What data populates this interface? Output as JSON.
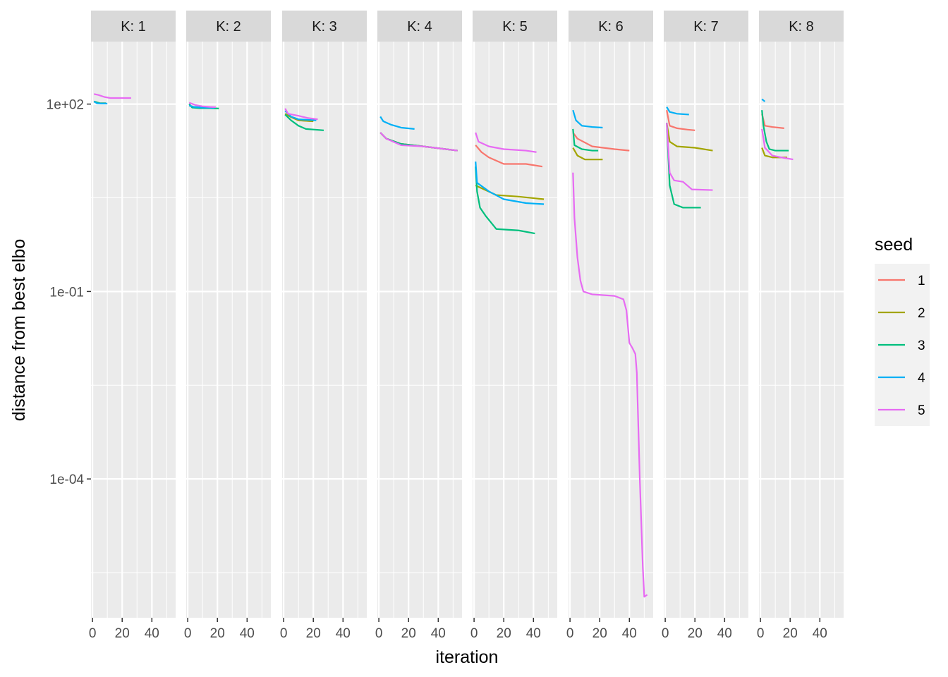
{
  "chart_data": {
    "type": "line",
    "title": "",
    "xlabel": "iteration",
    "ylabel": "distance from best elbo",
    "x_scale": "linear",
    "y_scale": "log10",
    "xlim": [
      -1,
      56
    ],
    "ylim": [
      6e-07,
      1000
    ],
    "x_ticks": [
      0,
      20,
      40
    ],
    "x_tick_labels": [
      "0",
      "20",
      "40"
    ],
    "y_ticks": [
      100,
      0.1,
      0.0001
    ],
    "y_tick_labels": [
      "1e+02",
      "1e-01",
      "1e-04"
    ],
    "facet_labels": [
      "K: 1",
      "K: 2",
      "K: 3",
      "K: 4",
      "K: 5",
      "K: 6",
      "K: 7",
      "K: 8"
    ],
    "legend": {
      "title": "seed",
      "position": "right",
      "entries": [
        {
          "label": "1",
          "color": "#F8766D"
        },
        {
          "label": "2",
          "color": "#A3A500"
        },
        {
          "label": "3",
          "color": "#00BF7D"
        },
        {
          "label": "4",
          "color": "#00B0F6"
        },
        {
          "label": "5",
          "color": "#E76BF3"
        }
      ]
    },
    "panels": [
      {
        "label": "K: 1",
        "series": [
          {
            "seed": "1",
            "points": [
              [
                1,
                110
              ],
              [
                5,
                103
              ],
              [
                9,
                103
              ]
            ]
          },
          {
            "seed": "2",
            "points": [
              [
                1,
                110
              ],
              [
                5,
                103
              ],
              [
                9,
                103
              ]
            ]
          },
          {
            "seed": "3",
            "points": [
              [
                1,
                110
              ],
              [
                5,
                103
              ],
              [
                9,
                103
              ]
            ]
          },
          {
            "seed": "4",
            "points": [
              [
                1,
                110
              ],
              [
                3,
                103
              ],
              [
                6,
                102
              ],
              [
                10,
                102
              ]
            ]
          },
          {
            "seed": "5",
            "points": [
              [
                1,
                145
              ],
              [
                4,
                140
              ],
              [
                8,
                130
              ],
              [
                12,
                125
              ],
              [
                26,
                125
              ]
            ]
          }
        ]
      },
      {
        "label": "K: 2",
        "series": [
          {
            "seed": "1",
            "points": [
              [
                1,
                95
              ],
              [
                4,
                90
              ],
              [
                10,
                88
              ],
              [
                18,
                87
              ]
            ]
          },
          {
            "seed": "2",
            "points": [
              [
                1,
                95
              ],
              [
                4,
                90
              ],
              [
                10,
                88
              ],
              [
                18,
                87
              ]
            ]
          },
          {
            "seed": "3",
            "points": [
              [
                1,
                100
              ],
              [
                3,
                88
              ],
              [
                8,
                86
              ],
              [
                15,
                86
              ],
              [
                21,
                85
              ]
            ]
          },
          {
            "seed": "4",
            "points": [
              [
                1,
                95
              ],
              [
                4,
                90
              ],
              [
                10,
                88
              ],
              [
                18,
                87
              ]
            ]
          },
          {
            "seed": "5",
            "points": [
              [
                1,
                105
              ],
              [
                5,
                97
              ],
              [
                10,
                92
              ],
              [
                15,
                90
              ],
              [
                19,
                89
              ]
            ]
          }
        ]
      },
      {
        "label": "K: 3",
        "series": [
          {
            "seed": "1",
            "points": [
              [
                1,
                70
              ],
              [
                5,
                62
              ],
              [
                10,
                55
              ],
              [
                20,
                53
              ]
            ]
          },
          {
            "seed": "2",
            "points": [
              [
                1,
                70
              ],
              [
                5,
                62
              ],
              [
                10,
                55
              ],
              [
                20,
                53
              ]
            ]
          },
          {
            "seed": "3",
            "points": [
              [
                1,
                68
              ],
              [
                5,
                55
              ],
              [
                10,
                45
              ],
              [
                15,
                40
              ],
              [
                27,
                38
              ]
            ]
          },
          {
            "seed": "4",
            "points": [
              [
                1,
                78
              ],
              [
                5,
                63
              ],
              [
                10,
                57
              ],
              [
                22,
                55
              ]
            ]
          },
          {
            "seed": "5",
            "points": [
              [
                1,
                85
              ],
              [
                3,
                70
              ],
              [
                10,
                65
              ],
              [
                16,
                60
              ],
              [
                23,
                57
              ]
            ]
          }
        ]
      },
      {
        "label": "K: 4",
        "series": [
          {
            "seed": "1",
            "points": [
              [
                1,
                35
              ],
              [
                5,
                28
              ],
              [
                15,
                23
              ],
              [
                30,
                21
              ],
              [
                53,
                18
              ]
            ]
          },
          {
            "seed": "2",
            "points": [
              [
                1,
                35
              ],
              [
                5,
                28
              ],
              [
                15,
                23
              ],
              [
                30,
                21
              ],
              [
                53,
                18
              ]
            ]
          },
          {
            "seed": "3",
            "points": [
              [
                1,
                35
              ],
              [
                5,
                28
              ],
              [
                15,
                23
              ],
              [
                30,
                21
              ],
              [
                53,
                18
              ]
            ]
          },
          {
            "seed": "4",
            "points": [
              [
                1,
                63
              ],
              [
                3,
                53
              ],
              [
                8,
                47
              ],
              [
                15,
                42
              ],
              [
                24,
                40
              ]
            ]
          },
          {
            "seed": "5",
            "points": [
              [
                1,
                35
              ],
              [
                5,
                28
              ],
              [
                15,
                22
              ],
              [
                30,
                21
              ],
              [
                53,
                18
              ]
            ]
          }
        ]
      },
      {
        "label": "K: 5",
        "series": [
          {
            "seed": "1",
            "points": [
              [
                1,
                22
              ],
              [
                5,
                17
              ],
              [
                10,
                14
              ],
              [
                20,
                11
              ],
              [
                35,
                11
              ],
              [
                46,
                10
              ]
            ]
          },
          {
            "seed": "2",
            "points": [
              [
                1,
                5
              ],
              [
                5,
                4.5
              ],
              [
                15,
                3.5
              ],
              [
                30,
                3.3
              ],
              [
                47,
                3.0
              ]
            ]
          },
          {
            "seed": "3",
            "points": [
              [
                1,
                10
              ],
              [
                2,
                4
              ],
              [
                4,
                2.2
              ],
              [
                8,
                1.6
              ],
              [
                15,
                1.0
              ],
              [
                30,
                0.95
              ],
              [
                41,
                0.85
              ]
            ]
          },
          {
            "seed": "4",
            "points": [
              [
                1,
                12
              ],
              [
                2,
                5.5
              ],
              [
                10,
                4
              ],
              [
                20,
                3
              ],
              [
                35,
                2.6
              ],
              [
                47,
                2.5
              ]
            ]
          },
          {
            "seed": "5",
            "points": [
              [
                1,
                35
              ],
              [
                3,
                25
              ],
              [
                10,
                21
              ],
              [
                20,
                19
              ],
              [
                35,
                18
              ],
              [
                42,
                17
              ]
            ]
          }
        ]
      },
      {
        "label": "K: 6",
        "series": [
          {
            "seed": "1",
            "points": [
              [
                2,
                35
              ],
              [
                5,
                28
              ],
              [
                15,
                21
              ],
              [
                30,
                19
              ],
              [
                40,
                18
              ]
            ]
          },
          {
            "seed": "2",
            "points": [
              [
                2,
                20
              ],
              [
                5,
                15
              ],
              [
                10,
                13
              ],
              [
                22,
                13
              ]
            ]
          },
          {
            "seed": "3",
            "points": [
              [
                2,
                40
              ],
              [
                3,
                22
              ],
              [
                8,
                19
              ],
              [
                15,
                18
              ],
              [
                19,
                18
              ]
            ]
          },
          {
            "seed": "4",
            "points": [
              [
                2,
                80
              ],
              [
                4,
                55
              ],
              [
                8,
                45
              ],
              [
                15,
                43
              ],
              [
                22,
                42
              ]
            ]
          },
          {
            "seed": "5",
            "points": [
              [
                2,
                8
              ],
              [
                3,
                1.5
              ],
              [
                5,
                0.35
              ],
              [
                7,
                0.15
              ],
              [
                9,
                0.1
              ],
              [
                15,
                0.09
              ],
              [
                30,
                0.085
              ],
              [
                36,
                0.075
              ],
              [
                38,
                0.05
              ],
              [
                40,
                0.015
              ],
              [
                42,
                0.0125
              ],
              [
                44,
                0.01
              ],
              [
                45,
                0.005
              ],
              [
                47,
                0.0001
              ],
              [
                48,
                2e-05
              ],
              [
                49,
                4e-06
              ],
              [
                50,
                1.3e-06
              ],
              [
                52,
                1.4e-06
              ]
            ]
          }
        ]
      },
      {
        "label": "K: 7",
        "series": [
          {
            "seed": "1",
            "points": [
              [
                1,
                80
              ],
              [
                3,
                45
              ],
              [
                8,
                41
              ],
              [
                15,
                39
              ],
              [
                20,
                38
              ]
            ]
          },
          {
            "seed": "2",
            "points": [
              [
                1,
                50
              ],
              [
                3,
                25
              ],
              [
                8,
                21
              ],
              [
                20,
                20
              ],
              [
                32,
                18
              ]
            ]
          },
          {
            "seed": "3",
            "points": [
              [
                1,
                50
              ],
              [
                3,
                5
              ],
              [
                6,
                2.5
              ],
              [
                12,
                2.2
              ],
              [
                24,
                2.2
              ]
            ]
          },
          {
            "seed": "4",
            "points": [
              [
                1,
                90
              ],
              [
                3,
                75
              ],
              [
                8,
                70
              ],
              [
                16,
                68
              ]
            ]
          },
          {
            "seed": "5",
            "points": [
              [
                1,
                50
              ],
              [
                3,
                8
              ],
              [
                6,
                6
              ],
              [
                12,
                5.7
              ],
              [
                18,
                4.3
              ],
              [
                32,
                4.2
              ]
            ]
          }
        ]
      },
      {
        "label": "K: 8",
        "series": [
          {
            "seed": "1",
            "points": [
              [
                1,
                70
              ],
              [
                3,
                45
              ],
              [
                8,
                43
              ],
              [
                16,
                41
              ]
            ]
          },
          {
            "seed": "2",
            "points": [
              [
                1,
                20
              ],
              [
                3,
                15
              ],
              [
                8,
                14
              ],
              [
                18,
                14
              ]
            ]
          },
          {
            "seed": "3",
            "points": [
              [
                1,
                80
              ],
              [
                2,
                45
              ],
              [
                4,
                25
              ],
              [
                6,
                19
              ],
              [
                10,
                18
              ],
              [
                19,
                18
              ]
            ]
          },
          {
            "seed": "4",
            "points": [
              [
                1,
                120
              ],
              [
                3,
                110
              ]
            ]
          },
          {
            "seed": "5",
            "points": [
              [
                1,
                40
              ],
              [
                3,
                20
              ],
              [
                8,
                15
              ],
              [
                14,
                14
              ],
              [
                22,
                13
              ]
            ]
          }
        ]
      }
    ]
  }
}
